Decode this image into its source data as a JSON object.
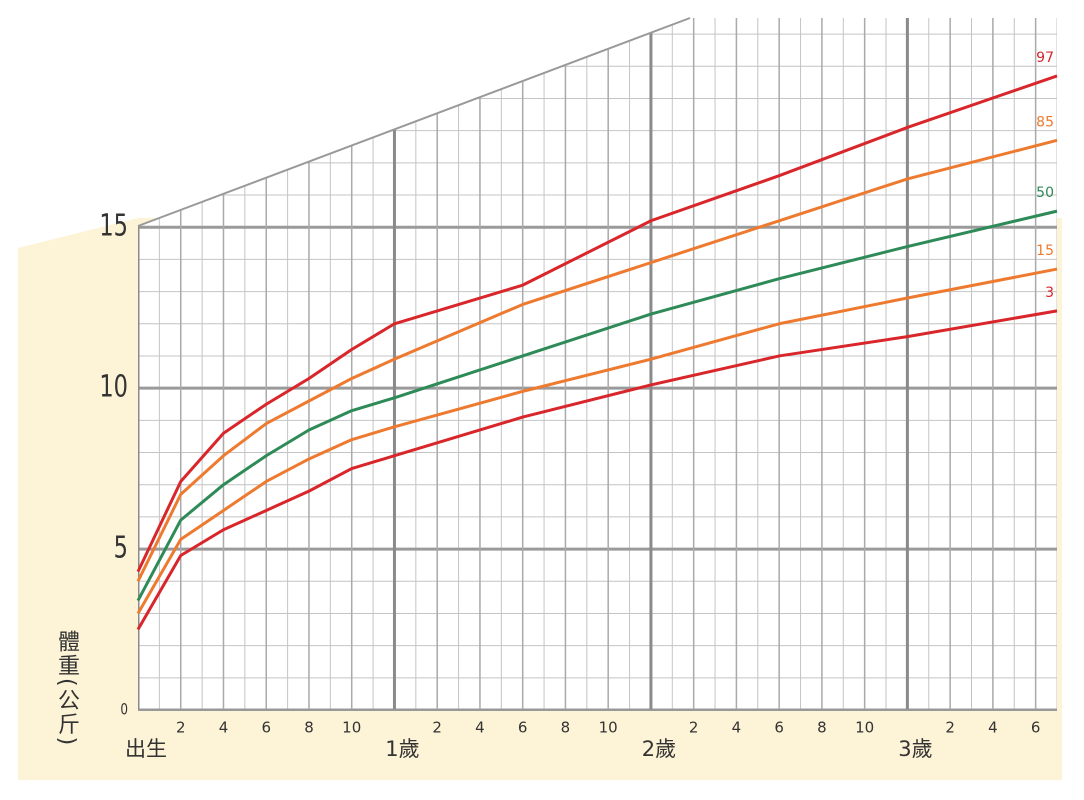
{
  "chart_data": {
    "type": "line",
    "y_label": "體重(公斤)",
    "x": [
      0,
      2,
      4,
      6,
      8,
      10,
      12,
      18,
      24,
      30,
      36,
      43
    ],
    "series": [
      {
        "name": "97",
        "color": "#d8262b",
        "values": [
          4.3,
          7.1,
          8.6,
          9.5,
          10.3,
          11.2,
          12.0,
          13.2,
          15.2,
          16.6,
          18.1,
          19.7
        ]
      },
      {
        "name": "85",
        "color": "#ee7a30",
        "values": [
          4.0,
          6.7,
          7.9,
          8.9,
          9.6,
          10.3,
          10.9,
          12.6,
          13.9,
          15.2,
          16.5,
          17.7
        ]
      },
      {
        "name": "50",
        "color": "#2e8b57",
        "values": [
          3.4,
          5.9,
          7.0,
          7.9,
          8.7,
          9.3,
          9.7,
          11.0,
          12.3,
          13.4,
          14.4,
          15.5
        ]
      },
      {
        "name": "15",
        "color": "#ee7a30",
        "values": [
          3.0,
          5.3,
          6.2,
          7.1,
          7.8,
          8.4,
          8.8,
          9.9,
          10.9,
          12.0,
          12.8,
          13.7
        ]
      },
      {
        "name": "3",
        "color": "#d8262b",
        "values": [
          2.5,
          4.8,
          5.6,
          6.2,
          6.8,
          7.5,
          7.9,
          9.1,
          10.1,
          11.0,
          11.6,
          12.4
        ]
      }
    ],
    "xlim": [
      0,
      43
    ],
    "ylim": [
      0,
      21.5
    ],
    "xticks": [
      {
        "value": 0,
        "label": "出生"
      },
      2,
      4,
      6,
      8,
      10,
      {
        "value": 12,
        "label": "1歲"
      },
      {
        "value": 14,
        "label": "2"
      },
      {
        "value": 16,
        "label": "4"
      },
      {
        "value": 18,
        "label": "6"
      },
      {
        "value": 20,
        "label": "8"
      },
      {
        "value": 22,
        "label": "10"
      },
      {
        "value": 24,
        "label": "2歲"
      },
      {
        "value": 26,
        "label": "2"
      },
      {
        "value": 28,
        "label": "4"
      },
      {
        "value": 30,
        "label": "6"
      },
      {
        "value": 32,
        "label": "8"
      },
      {
        "value": 34,
        "label": "10"
      },
      {
        "value": 36,
        "label": "3歲"
      },
      {
        "value": 38,
        "label": "2"
      },
      {
        "value": 40,
        "label": "4"
      },
      {
        "value": 42,
        "label": "6"
      }
    ],
    "yticks": [
      0,
      5,
      10,
      15
    ],
    "grid": true
  }
}
